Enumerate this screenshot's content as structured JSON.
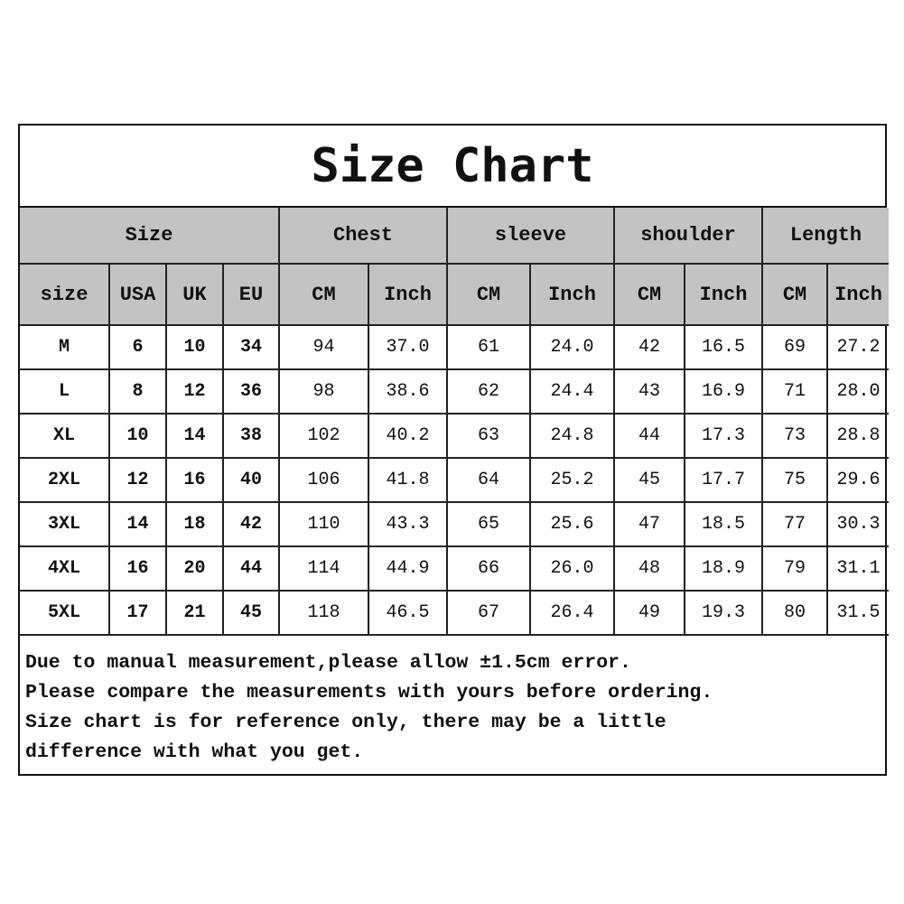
{
  "title": "Size Chart",
  "header_groups": [
    "Size",
    "Chest",
    "sleeve",
    "shoulder",
    "Length"
  ],
  "sub_headers": [
    "size",
    "USA",
    "UK",
    "EU",
    "CM",
    "Inch",
    "CM",
    "Inch",
    "CM",
    "Inch",
    "CM",
    "Inch"
  ],
  "rows": [
    [
      "M",
      "6",
      "10",
      "34",
      "94",
      "37.0",
      "61",
      "24.0",
      "42",
      "16.5",
      "69",
      "27.2"
    ],
    [
      "L",
      "8",
      "12",
      "36",
      "98",
      "38.6",
      "62",
      "24.4",
      "43",
      "16.9",
      "71",
      "28.0"
    ],
    [
      "XL",
      "10",
      "14",
      "38",
      "102",
      "40.2",
      "63",
      "24.8",
      "44",
      "17.3",
      "73",
      "28.8"
    ],
    [
      "2XL",
      "12",
      "16",
      "40",
      "106",
      "41.8",
      "64",
      "25.2",
      "45",
      "17.7",
      "75",
      "29.6"
    ],
    [
      "3XL",
      "14",
      "18",
      "42",
      "110",
      "43.3",
      "65",
      "25.6",
      "47",
      "18.5",
      "77",
      "30.3"
    ],
    [
      "4XL",
      "16",
      "20",
      "44",
      "114",
      "44.9",
      "66",
      "26.0",
      "48",
      "18.9",
      "79",
      "31.1"
    ],
    [
      "5XL",
      "17",
      "21",
      "45",
      "118",
      "46.5",
      "67",
      "26.4",
      "49",
      "19.3",
      "80",
      "31.5"
    ]
  ],
  "notes": [
    "Due to manual measurement,please allow ±1.5cm error.",
    "Please compare the measurements with yours before ordering.",
    "Size chart is for reference only, there may be a little",
    "difference with what you get."
  ],
  "colors": {
    "header_bg": "#c3c3c3",
    "border": "#222222"
  }
}
